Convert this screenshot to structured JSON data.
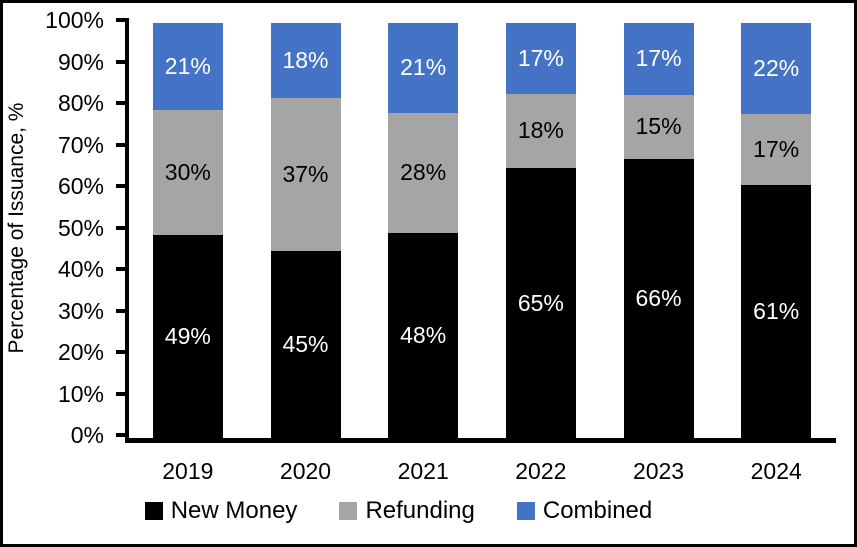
{
  "chart_data": {
    "type": "bar",
    "subtype": "stacked-100-percent",
    "title": "",
    "xlabel": "",
    "ylabel": "Percentage of Issuance, %",
    "categories": [
      "2019",
      "2020",
      "2021",
      "2022",
      "2023",
      "2024"
    ],
    "series": [
      {
        "name": "New Money",
        "color": "#000000",
        "label_color": "#FFFFFF",
        "values": [
          49,
          45,
          48,
          65,
          66,
          61
        ],
        "labels": [
          "49%",
          "45%",
          "48%",
          "65%",
          "66%",
          "61%"
        ]
      },
      {
        "name": "Refunding",
        "color": "#A5A5A5",
        "label_color": "#000000",
        "values": [
          30,
          37,
          28,
          18,
          15,
          17
        ],
        "labels": [
          "30%",
          "37%",
          "28%",
          "18%",
          "15%",
          "17%"
        ]
      },
      {
        "name": "Combined",
        "color": "#4472C4",
        "label_color": "#FFFFFF",
        "values": [
          21,
          18,
          21,
          17,
          17,
          22
        ],
        "labels": [
          "21%",
          "18%",
          "21%",
          "17%",
          "17%",
          "22%"
        ]
      }
    ],
    "y_ticks": [
      "0%",
      "10%",
      "20%",
      "30%",
      "40%",
      "50%",
      "60%",
      "70%",
      "80%",
      "90%",
      "100%"
    ],
    "ylim": [
      0,
      100
    ],
    "grid": false,
    "legend_position": "bottom",
    "axis_color": "#000000",
    "background_color": "#FFFFFF"
  }
}
